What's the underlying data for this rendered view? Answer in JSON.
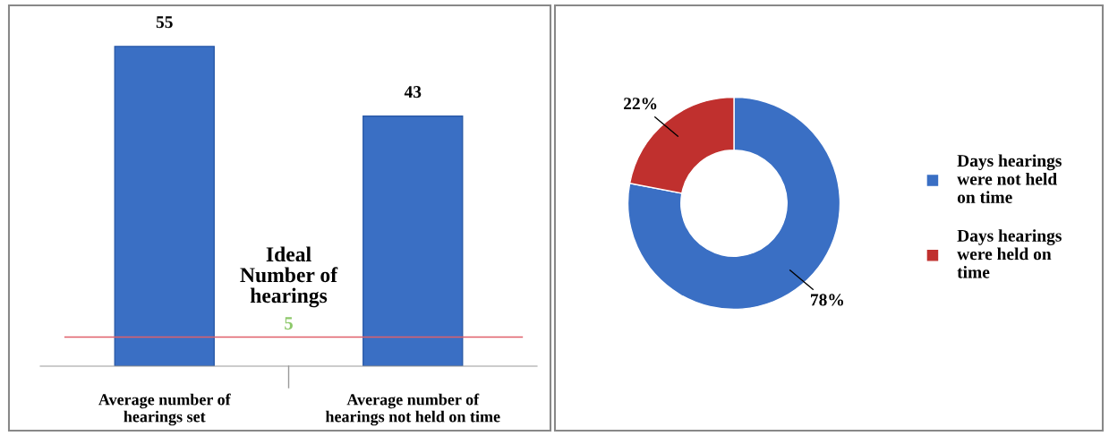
{
  "chart_data": [
    {
      "type": "bar",
      "categories": [
        "Average number of\nhearings set",
        "Average number of\nhearings not held on time"
      ],
      "values": [
        55,
        43
      ],
      "color": "#3a6fc4",
      "data_labels": true,
      "tick_labels": "x",
      "ref_lines": [
        {
          "axis": "y",
          "value": 5,
          "label": "Ideal\nNumber of\nhearings",
          "color": "#e0606a"
        }
      ],
      "annotations": [
        {
          "text": "5",
          "y": 5
        }
      ]
    },
    {
      "type": "donut",
      "categories": [
        "Days hearings\nwere not held\non time",
        "Days hearings\nwere held on\ntime"
      ],
      "values": [
        78,
        22
      ],
      "colors": [
        "#3a6fc4",
        "#c0302e"
      ],
      "value_labels": [
        "78%",
        "22%"
      ],
      "legend": "right"
    }
  ]
}
